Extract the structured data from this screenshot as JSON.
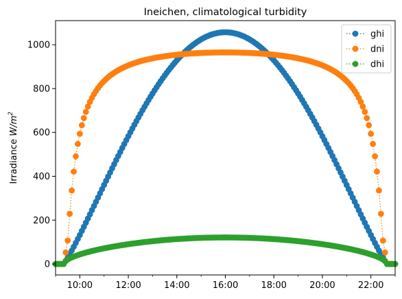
{
  "chart_data": {
    "type": "scatter",
    "title": "Ineichen, climatological turbidity",
    "xlabel": "",
    "ylabel": "Irradiance",
    "ylabel_math": "W/m",
    "ylabel_exp": "2",
    "x_range": [
      "09:00",
      "23:00"
    ],
    "x_ticks": [
      "10:00",
      "12:00",
      "14:00",
      "16:00",
      "18:00",
      "20:00",
      "22:00"
    ],
    "ylim": [
      -50,
      1110
    ],
    "y_ticks": [
      0,
      200,
      400,
      600,
      800,
      1000
    ],
    "grid": false,
    "legend_placement": "top-right",
    "sampling_interval_minutes": 5,
    "sunrise": "09:20",
    "sunset": "22:40",
    "series": [
      {
        "name": "ghi",
        "color": "#1f77b4",
        "line_style": "dotted",
        "marker": "circle",
        "peak_value": 1057,
        "peak_time": "15:55"
      },
      {
        "name": "dni",
        "color": "#ff7f0e",
        "line_style": "dotted",
        "marker": "circle",
        "peak_value": 965,
        "peak_time": "16:00"
      },
      {
        "name": "dhi",
        "color": "#2ca02c",
        "line_style": "dotted",
        "marker": "circle",
        "peak_value": 121,
        "peak_time": "16:00"
      }
    ]
  }
}
